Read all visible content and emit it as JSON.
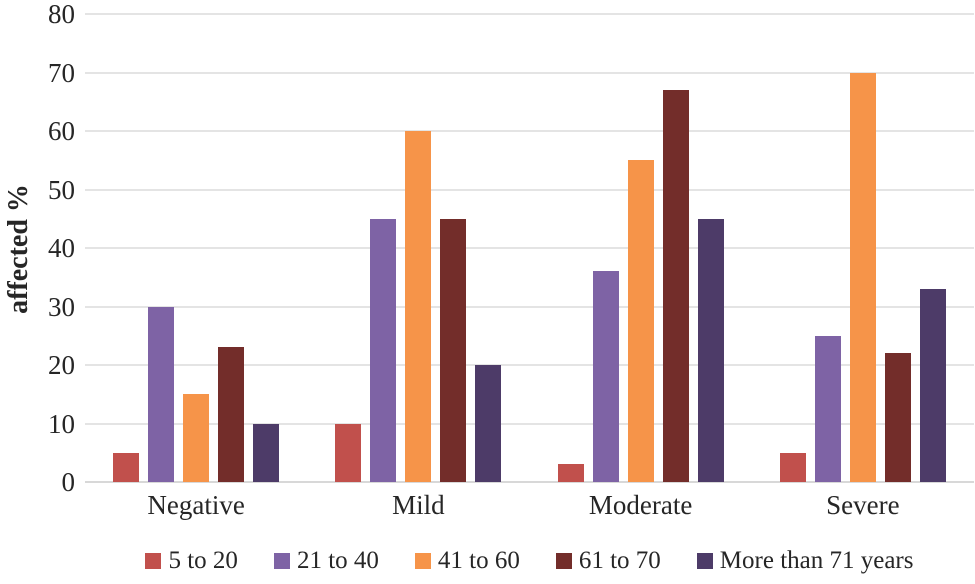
{
  "chart_data": {
    "type": "bar",
    "title": "",
    "xlabel": "",
    "ylabel": "affected %",
    "ylim": [
      0,
      80
    ],
    "ytick_step": 10,
    "yticks": [
      80,
      70,
      60,
      50,
      40,
      30,
      20,
      10,
      0
    ],
    "categories": [
      "Negative",
      "Mild",
      "Moderate",
      "Severe"
    ],
    "series": [
      {
        "name": "5 to 20",
        "color": "#c1504c",
        "values": [
          5,
          10,
          3,
          5
        ]
      },
      {
        "name": "21 to 40",
        "color": "#7e63a5",
        "values": [
          30,
          45,
          36,
          25
        ]
      },
      {
        "name": "41 to 60",
        "color": "#f69449",
        "values": [
          15,
          60,
          55,
          70
        ]
      },
      {
        "name": "61 to 70",
        "color": "#732d2a",
        "values": [
          23,
          45,
          67,
          22
        ]
      },
      {
        "name": "More than 71 years",
        "color": "#4d3b68",
        "values": [
          10,
          20,
          45,
          33
        ]
      }
    ],
    "legend_position": "bottom",
    "grid": "horizontal",
    "grid_color": "#e4e4e4",
    "baseline_color": "#d8d8d8"
  }
}
